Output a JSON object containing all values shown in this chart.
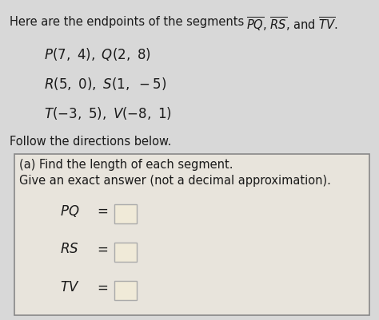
{
  "bg_color": "#d8d8d8",
  "box_bg_color": "#e8e4dc",
  "box_border_color": "#888888",
  "title_prefix": "Here are the endpoints of the segments ",
  "points_raw": [
    "P(7, 4), Q(2, 8)",
    "R(5, 0), S(1, −5)",
    "T(−3, 5), V(−8, 1)"
  ],
  "points_math": [
    "P(7,\\ 4),\\ Q(2,\\ 8)",
    "R(5,\\ 0),\\ S(1,\\ -5)",
    "T(-3,\\ 5),\\ V(-8,\\ 1)"
  ],
  "follow_text": "Follow the directions below.",
  "box_title1": "(a) Find the length of each segment.",
  "box_title2": "Give an exact answer (not a decimal approximation).",
  "eq_labels": [
    "PQ",
    "RS",
    "TV"
  ],
  "font_color": "#1a1a1a",
  "input_box_color": "#f0ead8",
  "input_box_border": "#aaaaaa"
}
